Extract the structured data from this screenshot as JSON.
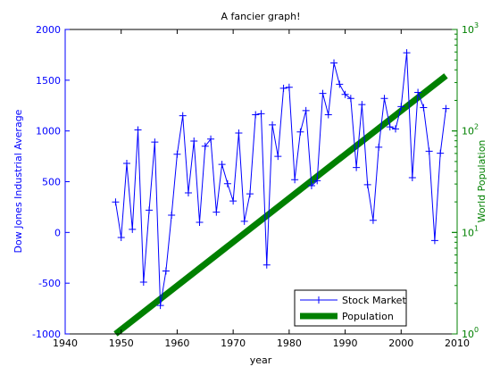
{
  "chart_data": {
    "type": "line",
    "title": "A fancier graph!",
    "xlabel": "year",
    "ylabel_left": "Dow Jones Industrial Average",
    "ylabel_right": "World Population",
    "xlim": [
      1940,
      2010
    ],
    "ylim_left": [
      -1000,
      2000
    ],
    "ylim_right": [
      1,
      1000
    ],
    "right_axis_scale": "log",
    "x_ticks": [
      "1940",
      "1950",
      "1960",
      "1970",
      "1980",
      "1990",
      "2000",
      "2010"
    ],
    "y_ticks_left": [
      "-1000",
      "-500",
      "0",
      "500",
      "1000",
      "1500",
      "2000"
    ],
    "y_ticks_right": [
      {
        "base": "10",
        "exp": "0"
      },
      {
        "base": "10",
        "exp": "1"
      },
      {
        "base": "10",
        "exp": "2"
      },
      {
        "base": "10",
        "exp": "3"
      }
    ],
    "grid": false,
    "legend_position": "bottom-right",
    "colors": {
      "stock": "#0000ff",
      "population": "#008000",
      "left_axis": "#0000ff",
      "right_axis": "#008000",
      "text": "#000000"
    },
    "series": [
      {
        "name": "Stock Market",
        "axis": "left",
        "marker": "+",
        "x": [
          1949,
          1950,
          1951,
          1952,
          1953,
          1954,
          1955,
          1956,
          1957,
          1958,
          1959,
          1960,
          1961,
          1962,
          1963,
          1964,
          1965,
          1966,
          1967,
          1968,
          1969,
          1970,
          1971,
          1972,
          1973,
          1974,
          1975,
          1976,
          1977,
          1978,
          1979,
          1980,
          1981,
          1982,
          1983,
          1984,
          1985,
          1986,
          1987,
          1988,
          1989,
          1990,
          1991,
          1992,
          1993,
          1994,
          1995,
          1996,
          1997,
          1998,
          1999,
          2000,
          2001,
          2002,
          2003,
          2004,
          2005,
          2006,
          2007,
          2008
        ],
        "values": [
          300,
          -50,
          680,
          30,
          1010,
          -490,
          220,
          890,
          -720,
          -380,
          170,
          770,
          1150,
          390,
          900,
          100,
          850,
          920,
          200,
          670,
          480,
          310,
          980,
          110,
          380,
          1160,
          1170,
          -320,
          1060,
          750,
          1420,
          1430,
          520,
          990,
          1200,
          460,
          510,
          1370,
          1160,
          1670,
          1460,
          1360,
          1320,
          640,
          1260,
          470,
          120,
          840,
          1320,
          1040,
          1020,
          1240,
          1770,
          540,
          1380,
          1230,
          800,
          -80,
          780,
          1220
        ]
      },
      {
        "name": "Population",
        "axis": "right",
        "x": [
          1949,
          2008
        ],
        "values": [
          1.0,
          350
        ]
      }
    ],
    "legend": [
      {
        "label": "Stock Market"
      },
      {
        "label": "Population"
      }
    ]
  }
}
